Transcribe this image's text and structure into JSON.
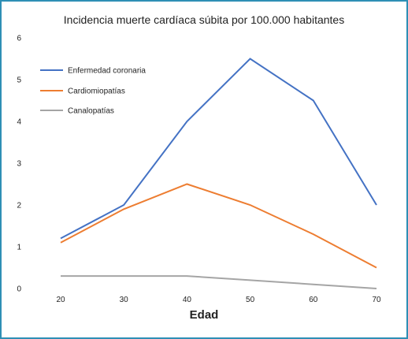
{
  "chart_data": {
    "type": "line",
    "title": "Incidencia muerte cardíaca súbita por 100.000 habitantes",
    "xlabel": "Edad",
    "ylabel": "",
    "x": [
      20,
      30,
      40,
      50,
      60,
      70
    ],
    "ylim": [
      0,
      6
    ],
    "yticks": [
      0,
      1,
      2,
      3,
      4,
      5,
      6
    ],
    "grid": false,
    "legend": "top-left",
    "series": [
      {
        "name": "Enfermedad coronaria",
        "color": "#4472c4",
        "values": [
          1.2,
          2.0,
          4.0,
          5.5,
          4.5,
          2.0
        ]
      },
      {
        "name": "Cardiomiopatías",
        "color": "#ed7d31",
        "values": [
          1.1,
          1.9,
          2.5,
          2.0,
          1.3,
          0.5
        ]
      },
      {
        "name": "Canalopatías",
        "color": "#a5a5a5",
        "values": [
          0.3,
          0.3,
          0.3,
          0.2,
          0.1,
          0.0
        ]
      }
    ]
  }
}
